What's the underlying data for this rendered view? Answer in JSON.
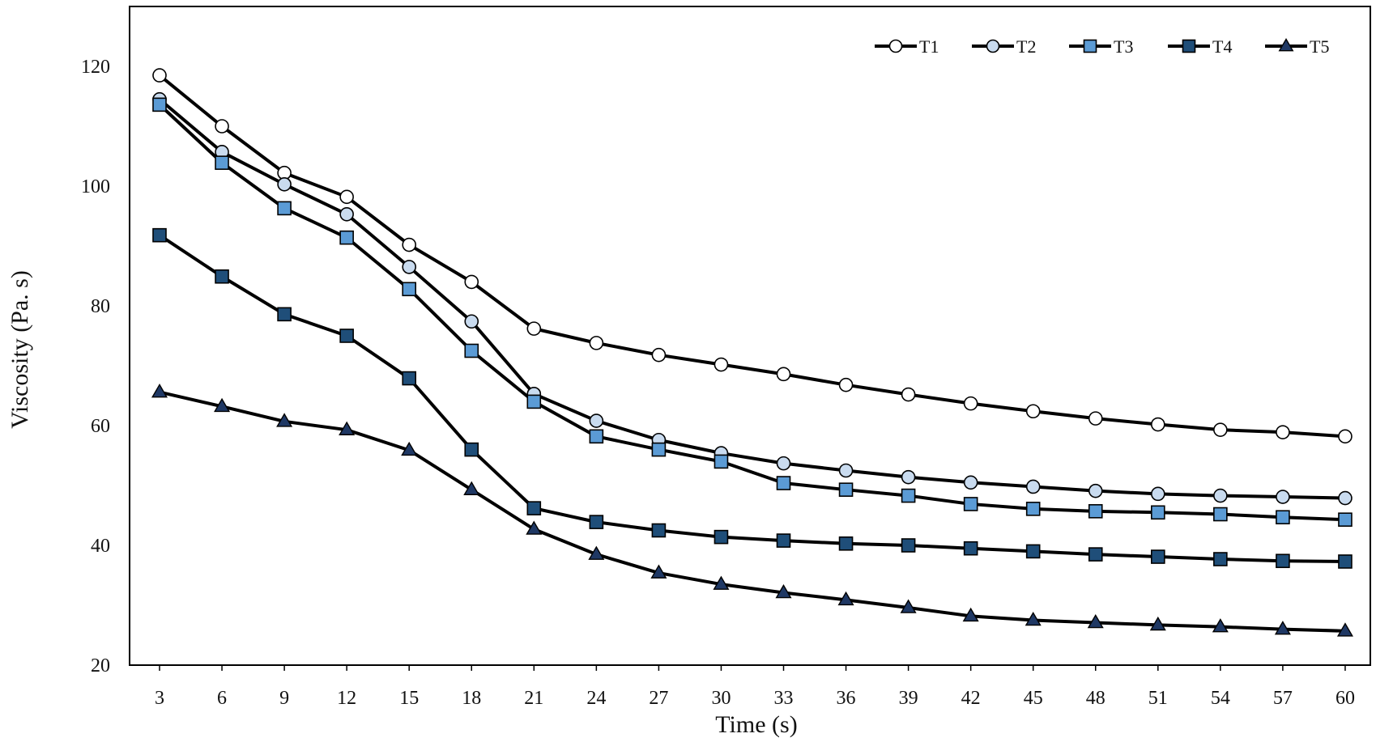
{
  "chart_data": {
    "type": "line",
    "title": "",
    "xlabel": "Time (s)",
    "ylabel": "Viscosity (Pa. s)",
    "x": [
      3,
      6,
      9,
      12,
      15,
      18,
      21,
      24,
      27,
      30,
      33,
      36,
      39,
      42,
      45,
      48,
      51,
      54,
      57,
      60
    ],
    "x_tick_labels": [
      "3",
      "6",
      "9",
      "12",
      "15",
      "18",
      "21",
      "24",
      "27",
      "30",
      "33",
      "36",
      "39",
      "42",
      "45",
      "48",
      "51",
      "54",
      "57",
      "60"
    ],
    "ylim": [
      20,
      130
    ],
    "y_ticks": [
      20,
      40,
      60,
      80,
      100,
      120
    ],
    "y_tick_labels": [
      "20",
      "40",
      "60",
      "80",
      "100",
      "120"
    ],
    "grid": false,
    "legend_position": "top-right",
    "series": [
      {
        "name": "T1",
        "marker": "circle",
        "marker_color": "#ffffff",
        "values": [
          118.5,
          110,
          102.2,
          98.2,
          90.2,
          84,
          76.2,
          73.8,
          71.8,
          70.2,
          68.6,
          66.8,
          65.2,
          63.7,
          62.4,
          61.2,
          60.2,
          59.3,
          58.9,
          58.2
        ]
      },
      {
        "name": "T2",
        "marker": "circle",
        "marker_color": "#c9dbef",
        "values": [
          114.5,
          105.7,
          100.3,
          95.3,
          86.5,
          77.4,
          65.3,
          60.8,
          57.6,
          55.4,
          53.7,
          52.5,
          51.4,
          50.5,
          49.8,
          49.1,
          48.6,
          48.3,
          48.1,
          47.9
        ]
      },
      {
        "name": "T3",
        "marker": "square",
        "marker_color": "#5b9bd5",
        "values": [
          113.6,
          103.9,
          96.3,
          91.4,
          82.8,
          72.5,
          64,
          58.2,
          56,
          54,
          50.4,
          49.3,
          48.3,
          46.9,
          46.1,
          45.7,
          45.5,
          45.2,
          44.7,
          44.3
        ]
      },
      {
        "name": "T4",
        "marker": "square",
        "marker_color": "#1f4e79",
        "values": [
          91.8,
          84.9,
          78.6,
          75,
          67.9,
          56,
          46.2,
          43.9,
          42.5,
          41.4,
          40.8,
          40.3,
          40,
          39.5,
          39,
          38.5,
          38.1,
          37.7,
          37.4,
          37.3
        ]
      },
      {
        "name": "T5",
        "marker": "triangle",
        "marker_color": "#1f3864",
        "values": [
          65.6,
          63.2,
          60.7,
          59.3,
          55.9,
          49.3,
          42.7,
          38.5,
          35.4,
          33.5,
          32.1,
          30.9,
          29.6,
          28.2,
          27.5,
          27.1,
          26.7,
          26.4,
          26,
          25.7
        ]
      }
    ]
  }
}
